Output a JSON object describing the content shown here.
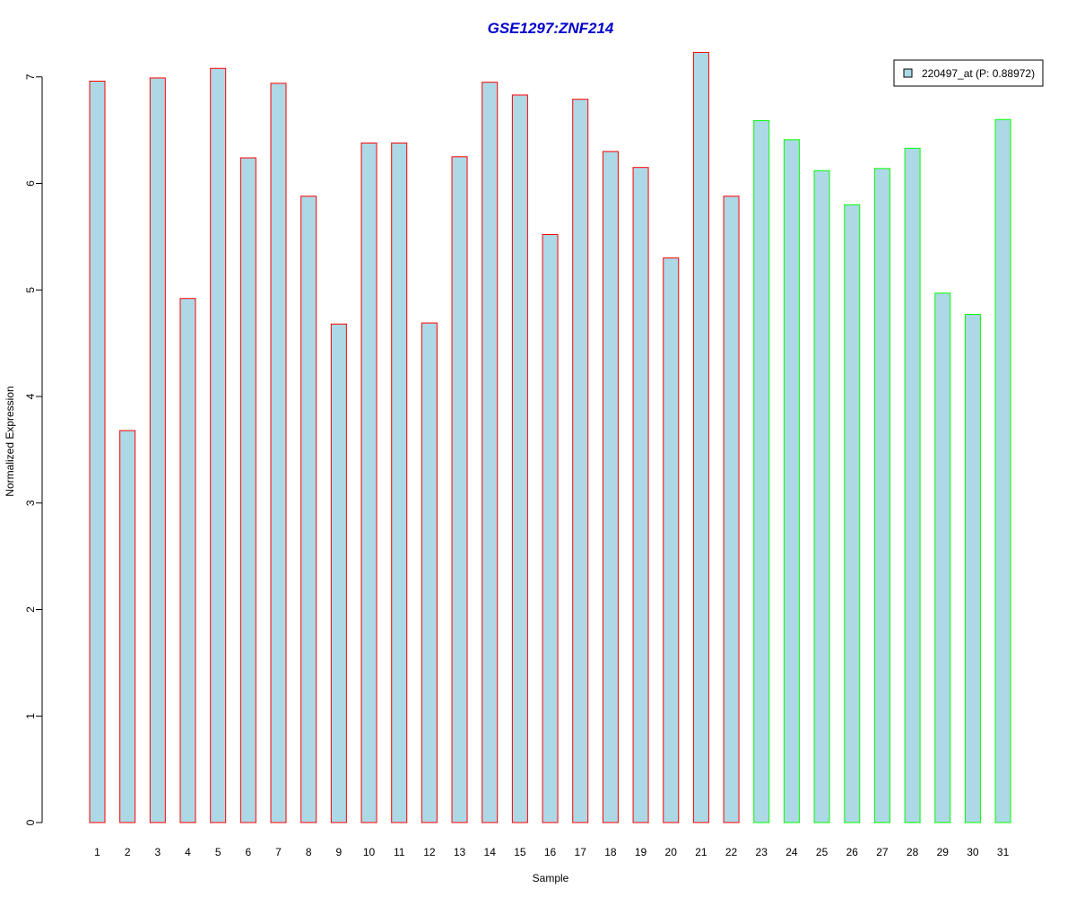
{
  "chart_data": {
    "type": "bar",
    "title": "GSE1297:ZNF214",
    "title_color": "#0000CC",
    "xlabel": "Sample",
    "ylabel": "Normalized Expression",
    "ylim": [
      0,
      7.25
    ],
    "yticks": [
      0,
      1,
      2,
      3,
      4,
      5,
      6,
      7
    ],
    "categories": [
      "1",
      "2",
      "3",
      "4",
      "5",
      "6",
      "7",
      "8",
      "9",
      "10",
      "11",
      "12",
      "13",
      "14",
      "15",
      "16",
      "17",
      "18",
      "19",
      "20",
      "21",
      "22",
      "23",
      "24",
      "25",
      "26",
      "27",
      "28",
      "29",
      "30",
      "31"
    ],
    "series": [
      {
        "name": "220497_at (P: 0.88972)",
        "fill": "#ADD8E6",
        "values": [
          6.96,
          3.68,
          6.99,
          4.92,
          7.08,
          6.24,
          6.94,
          5.88,
          4.68,
          6.38,
          6.38,
          4.69,
          6.25,
          6.95,
          6.83,
          5.52,
          6.79,
          6.3,
          6.15,
          5.3,
          7.23,
          5.88,
          6.59,
          6.41,
          6.12,
          5.8,
          6.14,
          6.33,
          4.97,
          4.77,
          6.6
        ],
        "border_colors": [
          "#FF0000",
          "#FF0000",
          "#FF0000",
          "#FF0000",
          "#FF0000",
          "#FF0000",
          "#FF0000",
          "#FF0000",
          "#FF0000",
          "#FF0000",
          "#FF0000",
          "#FF0000",
          "#FF0000",
          "#FF0000",
          "#FF0000",
          "#FF0000",
          "#FF0000",
          "#FF0000",
          "#FF0000",
          "#FF0000",
          "#FF0000",
          "#FF0000",
          "#00FF00",
          "#00FF00",
          "#00FF00",
          "#00FF00",
          "#00FF00",
          "#00FF00",
          "#00FF00",
          "#00FF00",
          "#00FF00"
        ]
      }
    ],
    "legend": {
      "placement": "top-right",
      "label": "220497_at (P: 0.88972)"
    },
    "grid": false
  }
}
